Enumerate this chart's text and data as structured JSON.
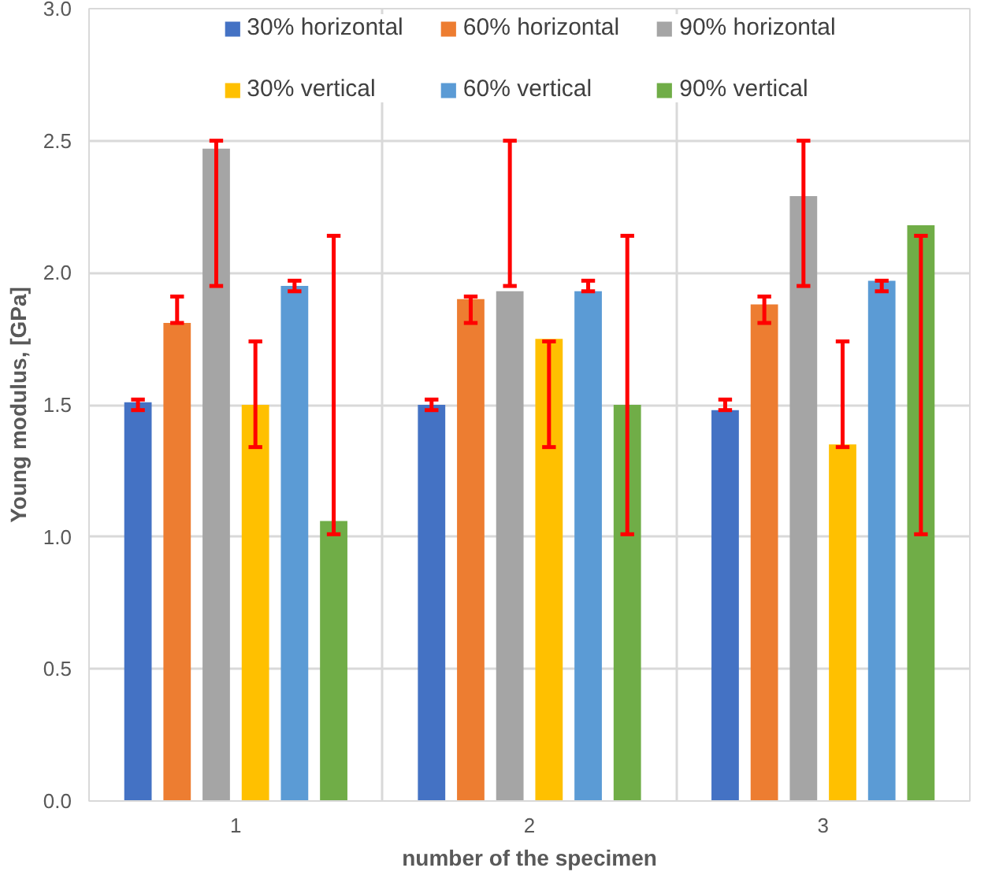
{
  "chart_data": {
    "type": "bar",
    "xlabel": "number of the specimen",
    "ylabel": "Young modulus, [GPa]",
    "categories": [
      "1",
      "2",
      "3"
    ],
    "series": [
      {
        "name": "30% horizontal",
        "color": "#4472c4",
        "values": [
          1.51,
          1.5,
          1.48
        ],
        "errors": [
          [
            1.48,
            1.52
          ],
          [
            1.48,
            1.52
          ],
          [
            1.48,
            1.52
          ]
        ]
      },
      {
        "name": "60% horizontal",
        "color": "#ed7d31",
        "values": [
          1.81,
          1.9,
          1.88
        ],
        "errors": [
          [
            1.81,
            1.91
          ],
          [
            1.81,
            1.91
          ],
          [
            1.81,
            1.91
          ]
        ]
      },
      {
        "name": "90% horizontal",
        "color": "#a5a5a5",
        "values": [
          2.47,
          1.93,
          2.29
        ],
        "errors": [
          [
            1.95,
            2.5
          ],
          [
            1.95,
            2.5
          ],
          [
            1.95,
            2.5
          ]
        ]
      },
      {
        "name": "30% vertical",
        "color": "#ffc000",
        "values": [
          1.5,
          1.75,
          1.35
        ],
        "errors": [
          [
            1.34,
            1.74
          ],
          [
            1.34,
            1.74
          ],
          [
            1.34,
            1.74
          ]
        ]
      },
      {
        "name": "60% vertical",
        "color": "#5b9bd5",
        "values": [
          1.95,
          1.93,
          1.97
        ],
        "errors": [
          [
            1.93,
            1.97
          ],
          [
            1.93,
            1.97
          ],
          [
            1.93,
            1.97
          ]
        ]
      },
      {
        "name": "90% vertical",
        "color": "#70ad47",
        "values": [
          1.06,
          1.5,
          2.18
        ],
        "errors": [
          [
            1.01,
            2.14
          ],
          [
            1.01,
            2.14
          ],
          [
            1.01,
            2.14
          ]
        ]
      }
    ],
    "ylim": [
      0,
      3
    ],
    "yticks": [
      {
        "value": 0,
        "label": "0.0"
      },
      {
        "value": 0.5,
        "label": "0.5"
      },
      {
        "value": 1,
        "label": "1.0"
      },
      {
        "value": 1.5,
        "label": "1.5"
      },
      {
        "value": 2,
        "label": "2.0"
      },
      {
        "value": 2.5,
        "label": "2.5"
      },
      {
        "value": 3,
        "label": "3.0"
      }
    ],
    "grid": true,
    "legend": "top"
  }
}
